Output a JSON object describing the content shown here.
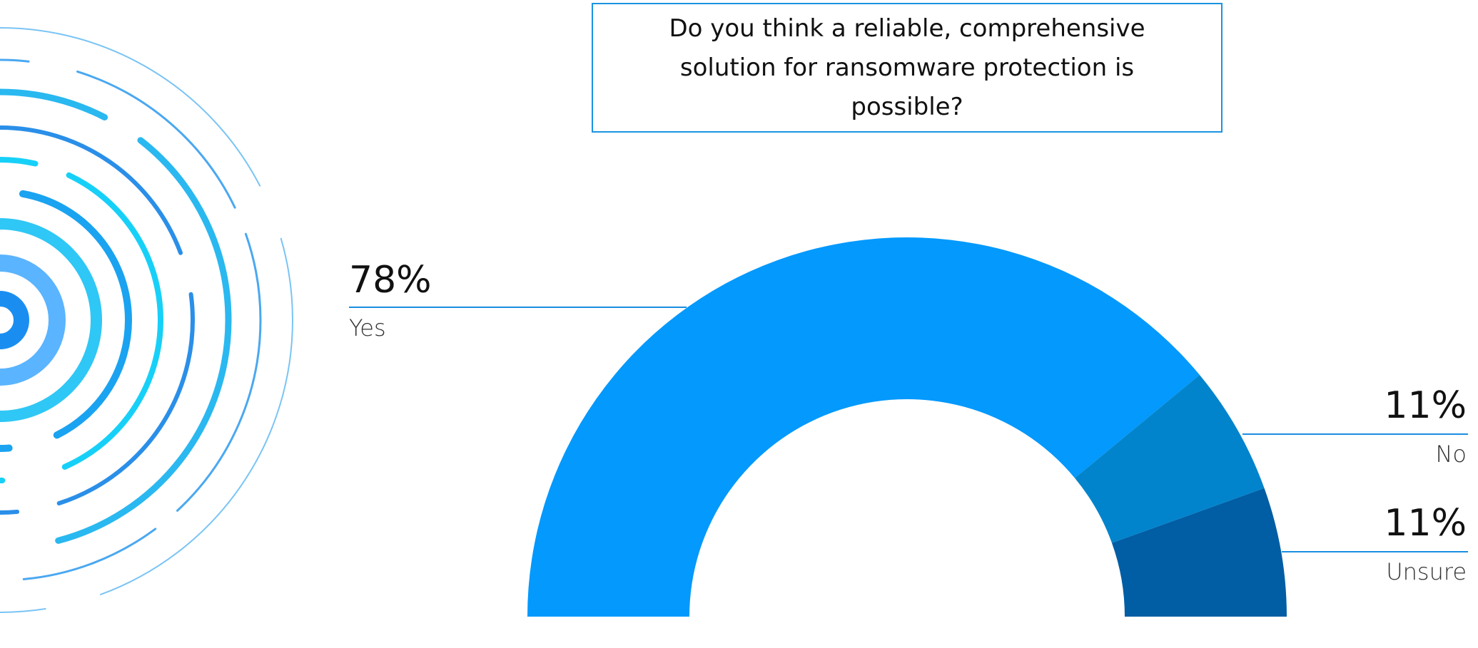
{
  "chart_data": {
    "type": "semi-donut",
    "title": "Do you think a reliable, comprehensive solution for ransomware protection is possible?",
    "categories": [
      "Yes",
      "No",
      "Unsure"
    ],
    "values": [
      78,
      11,
      11
    ],
    "value_labels": [
      "78%",
      "11%",
      "11%"
    ],
    "colors": [
      "#0399fd",
      "#0284cc",
      "#015da4"
    ]
  }
}
